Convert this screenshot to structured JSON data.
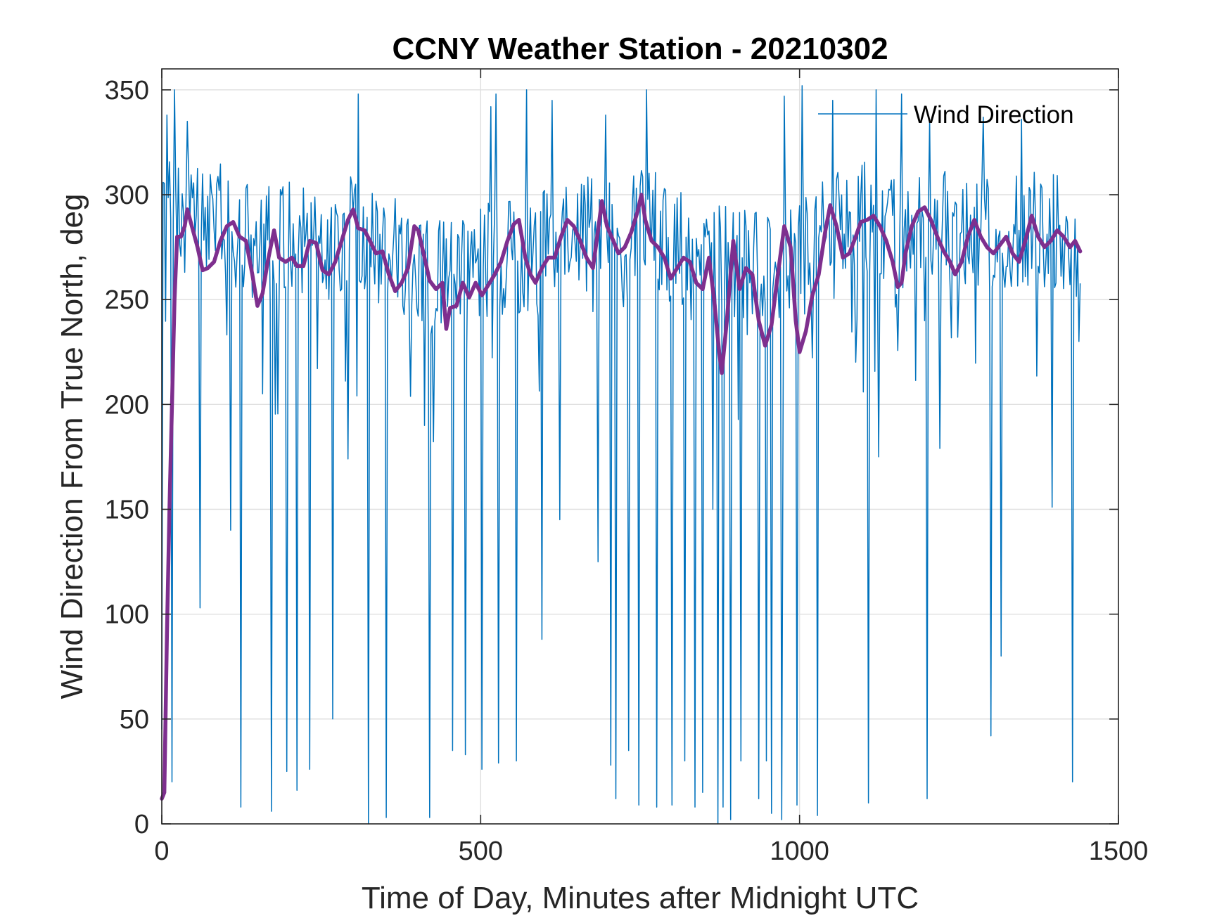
{
  "chart_data": {
    "type": "line",
    "title": "CCNY Weather Station - 20210302",
    "xlabel": "Time of Day, Minutes after Midnight UTC",
    "ylabel": "Wind Direction From True North, deg",
    "xlim": [
      0,
      1500
    ],
    "ylim": [
      0,
      360
    ],
    "xticks": [
      0,
      500,
      1000,
      1500
    ],
    "yticks": [
      0,
      50,
      100,
      150,
      200,
      250,
      300,
      350
    ],
    "grid": true,
    "legend": {
      "location": "top-right",
      "entries": [
        "Wind Direction"
      ]
    },
    "sample_interval_min": 2,
    "x_end": 1440,
    "series": [
      {
        "name": "Wind Direction",
        "color": "#0072BD",
        "style": "thin",
        "mean_profile": [
          [
            0,
            290
          ],
          [
            40,
            285
          ],
          [
            100,
            288
          ],
          [
            150,
            275
          ],
          [
            200,
            278
          ],
          [
            250,
            275
          ],
          [
            300,
            285
          ],
          [
            350,
            272
          ],
          [
            400,
            268
          ],
          [
            450,
            262
          ],
          [
            500,
            268
          ],
          [
            550,
            270
          ],
          [
            600,
            275
          ],
          [
            650,
            280
          ],
          [
            700,
            282
          ],
          [
            750,
            290
          ],
          [
            800,
            275
          ],
          [
            850,
            270
          ],
          [
            900,
            265
          ],
          [
            950,
            270
          ],
          [
            1000,
            268
          ],
          [
            1050,
            285
          ],
          [
            1100,
            288
          ],
          [
            1150,
            280
          ],
          [
            1200,
            285
          ],
          [
            1250,
            282
          ],
          [
            1300,
            280
          ],
          [
            1350,
            285
          ],
          [
            1400,
            282
          ],
          [
            1440,
            283
          ]
        ],
        "spread": 28,
        "dips": [
          [
            0,
            45
          ],
          [
            16,
            20
          ],
          [
            60,
            103
          ],
          [
            108,
            140
          ],
          [
            124,
            8
          ],
          [
            143,
            20
          ],
          [
            172,
            6
          ],
          [
            196,
            25
          ],
          [
            212,
            16
          ],
          [
            232,
            26
          ],
          [
            268,
            50
          ],
          [
            292,
            174
          ],
          [
            324,
            0
          ],
          [
            343,
            30
          ],
          [
            352,
            3
          ],
          [
            412,
            190
          ],
          [
            420,
            3
          ],
          [
            456,
            35
          ],
          [
            476,
            33
          ],
          [
            502,
            26
          ],
          [
            528,
            29
          ],
          [
            556,
            30
          ],
          [
            596,
            88
          ],
          [
            624,
            145
          ],
          [
            684,
            125
          ],
          [
            704,
            28
          ],
          [
            712,
            12
          ],
          [
            732,
            35
          ],
          [
            748,
            9
          ],
          [
            776,
            8
          ],
          [
            800,
            9
          ],
          [
            820,
            30
          ],
          [
            836,
            8
          ],
          [
            848,
            15
          ],
          [
            864,
            150
          ],
          [
            872,
            0
          ],
          [
            880,
            8
          ],
          [
            892,
            2
          ],
          [
            908,
            30
          ],
          [
            936,
            12
          ],
          [
            948,
            30
          ],
          [
            956,
            5
          ],
          [
            972,
            2
          ],
          [
            996,
            9
          ],
          [
            1028,
            4
          ],
          [
            1108,
            10
          ],
          [
            1124,
            175
          ],
          [
            1200,
            12
          ],
          [
            1220,
            179
          ],
          [
            1300,
            42
          ],
          [
            1316,
            80
          ],
          [
            1396,
            151
          ],
          [
            1428,
            20
          ]
        ],
        "peaks": [
          [
            8,
            338
          ],
          [
            20,
            350
          ],
          [
            40,
            335
          ],
          [
            212,
            345
          ],
          [
            232,
            337
          ],
          [
            308,
            348
          ],
          [
            516,
            342
          ],
          [
            524,
            348
          ],
          [
            572,
            350
          ],
          [
            612,
            345
          ],
          [
            696,
            338
          ],
          [
            732,
            350
          ],
          [
            760,
            350
          ],
          [
            836,
            348
          ],
          [
            976,
            347
          ],
          [
            1004,
            352
          ],
          [
            1052,
            345
          ],
          [
            1120,
            350
          ],
          [
            1160,
            348
          ],
          [
            1204,
            336
          ],
          [
            1288,
            337
          ],
          [
            1348,
            336
          ],
          [
            1428,
            332
          ]
        ]
      },
      {
        "name": "",
        "color": "#7E2F8E",
        "style": "thick",
        "points": [
          [
            0,
            12
          ],
          [
            4,
            15
          ],
          [
            8,
            90
          ],
          [
            12,
            150
          ],
          [
            16,
            200
          ],
          [
            20,
            250
          ],
          [
            24,
            280
          ],
          [
            30,
            280
          ],
          [
            36,
            285
          ],
          [
            40,
            293
          ],
          [
            48,
            284
          ],
          [
            56,
            275
          ],
          [
            64,
            264
          ],
          [
            72,
            265
          ],
          [
            82,
            268
          ],
          [
            92,
            278
          ],
          [
            102,
            285
          ],
          [
            112,
            287
          ],
          [
            122,
            280
          ],
          [
            132,
            278
          ],
          [
            142,
            262
          ],
          [
            150,
            247
          ],
          [
            158,
            253
          ],
          [
            166,
            268
          ],
          [
            176,
            283
          ],
          [
            184,
            270
          ],
          [
            194,
            268
          ],
          [
            204,
            270
          ],
          [
            212,
            266
          ],
          [
            222,
            266
          ],
          [
            232,
            278
          ],
          [
            242,
            277
          ],
          [
            252,
            264
          ],
          [
            262,
            262
          ],
          [
            272,
            268
          ],
          [
            282,
            278
          ],
          [
            292,
            288
          ],
          [
            300,
            293
          ],
          [
            308,
            284
          ],
          [
            318,
            283
          ],
          [
            328,
            277
          ],
          [
            336,
            272
          ],
          [
            346,
            273
          ],
          [
            356,
            262
          ],
          [
            366,
            254
          ],
          [
            376,
            258
          ],
          [
            386,
            265
          ],
          [
            396,
            285
          ],
          [
            402,
            283
          ],
          [
            412,
            270
          ],
          [
            420,
            259
          ],
          [
            430,
            255
          ],
          [
            440,
            258
          ],
          [
            446,
            236
          ],
          [
            452,
            246
          ],
          [
            462,
            247
          ],
          [
            472,
            258
          ],
          [
            482,
            251
          ],
          [
            492,
            258
          ],
          [
            502,
            252
          ],
          [
            512,
            257
          ],
          [
            522,
            262
          ],
          [
            532,
            268
          ],
          [
            542,
            278
          ],
          [
            552,
            286
          ],
          [
            560,
            288
          ],
          [
            570,
            270
          ],
          [
            578,
            262
          ],
          [
            586,
            258
          ],
          [
            596,
            265
          ],
          [
            606,
            270
          ],
          [
            616,
            270
          ],
          [
            626,
            280
          ],
          [
            636,
            288
          ],
          [
            646,
            285
          ],
          [
            656,
            278
          ],
          [
            666,
            270
          ],
          [
            676,
            265
          ],
          [
            684,
            283
          ],
          [
            690,
            297
          ],
          [
            698,
            285
          ],
          [
            708,
            278
          ],
          [
            716,
            272
          ],
          [
            726,
            275
          ],
          [
            736,
            282
          ],
          [
            746,
            292
          ],
          [
            752,
            300
          ],
          [
            758,
            288
          ],
          [
            768,
            278
          ],
          [
            778,
            275
          ],
          [
            788,
            270
          ],
          [
            798,
            260
          ],
          [
            808,
            265
          ],
          [
            818,
            270
          ],
          [
            828,
            268
          ],
          [
            838,
            258
          ],
          [
            848,
            255
          ],
          [
            858,
            270
          ],
          [
            866,
            250
          ],
          [
            874,
            225
          ],
          [
            878,
            215
          ],
          [
            886,
            240
          ],
          [
            896,
            278
          ],
          [
            906,
            255
          ],
          [
            916,
            265
          ],
          [
            926,
            262
          ],
          [
            936,
            240
          ],
          [
            946,
            228
          ],
          [
            956,
            238
          ],
          [
            966,
            262
          ],
          [
            976,
            285
          ],
          [
            986,
            275
          ],
          [
            994,
            240
          ],
          [
            1000,
            225
          ],
          [
            1010,
            235
          ],
          [
            1020,
            252
          ],
          [
            1030,
            262
          ],
          [
            1040,
            282
          ],
          [
            1048,
            295
          ],
          [
            1058,
            285
          ],
          [
            1068,
            270
          ],
          [
            1078,
            272
          ],
          [
            1088,
            280
          ],
          [
            1096,
            287
          ],
          [
            1106,
            288
          ],
          [
            1116,
            290
          ],
          [
            1126,
            285
          ],
          [
            1136,
            278
          ],
          [
            1146,
            268
          ],
          [
            1154,
            256
          ],
          [
            1160,
            258
          ],
          [
            1166,
            272
          ],
          [
            1176,
            285
          ],
          [
            1186,
            292
          ],
          [
            1196,
            294
          ],
          [
            1206,
            288
          ],
          [
            1216,
            280
          ],
          [
            1226,
            273
          ],
          [
            1236,
            268
          ],
          [
            1244,
            262
          ],
          [
            1254,
            268
          ],
          [
            1264,
            280
          ],
          [
            1274,
            288
          ],
          [
            1284,
            280
          ],
          [
            1294,
            275
          ],
          [
            1304,
            272
          ],
          [
            1314,
            276
          ],
          [
            1324,
            280
          ],
          [
            1334,
            272
          ],
          [
            1344,
            268
          ],
          [
            1354,
            278
          ],
          [
            1364,
            290
          ],
          [
            1374,
            280
          ],
          [
            1384,
            275
          ],
          [
            1394,
            278
          ],
          [
            1404,
            283
          ],
          [
            1414,
            280
          ],
          [
            1424,
            275
          ],
          [
            1432,
            278
          ],
          [
            1440,
            273
          ]
        ]
      }
    ]
  }
}
